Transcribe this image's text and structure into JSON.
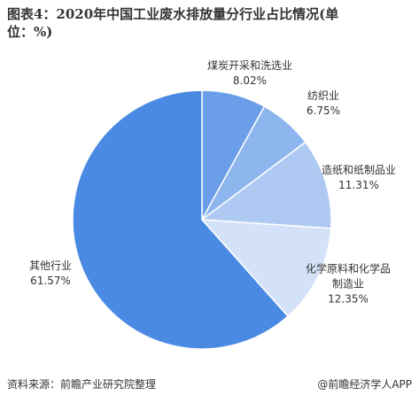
{
  "chart_data": {
    "type": "pie",
    "title": "图表4：2020年中国工业废水排放量分行业占比情况(单位：%)",
    "categories": [
      "煤炭开采和洗选业",
      "纺织业",
      "造纸和纸制品业",
      "化学原料和化学品制造业",
      "其他行业"
    ],
    "values": [
      8.02,
      6.75,
      11.31,
      12.35,
      61.57
    ],
    "value_labels": [
      "8.02%",
      "6.75%",
      "11.31%",
      "12.35%",
      "61.57%"
    ],
    "colors": [
      "#6a9ee8",
      "#8db6ef",
      "#aecaf3",
      "#d3e2f8",
      "#4a8ae3"
    ],
    "source": "资料来源：前瞻产业研究院整理",
    "credit": "@前瞻经济学人APP"
  }
}
